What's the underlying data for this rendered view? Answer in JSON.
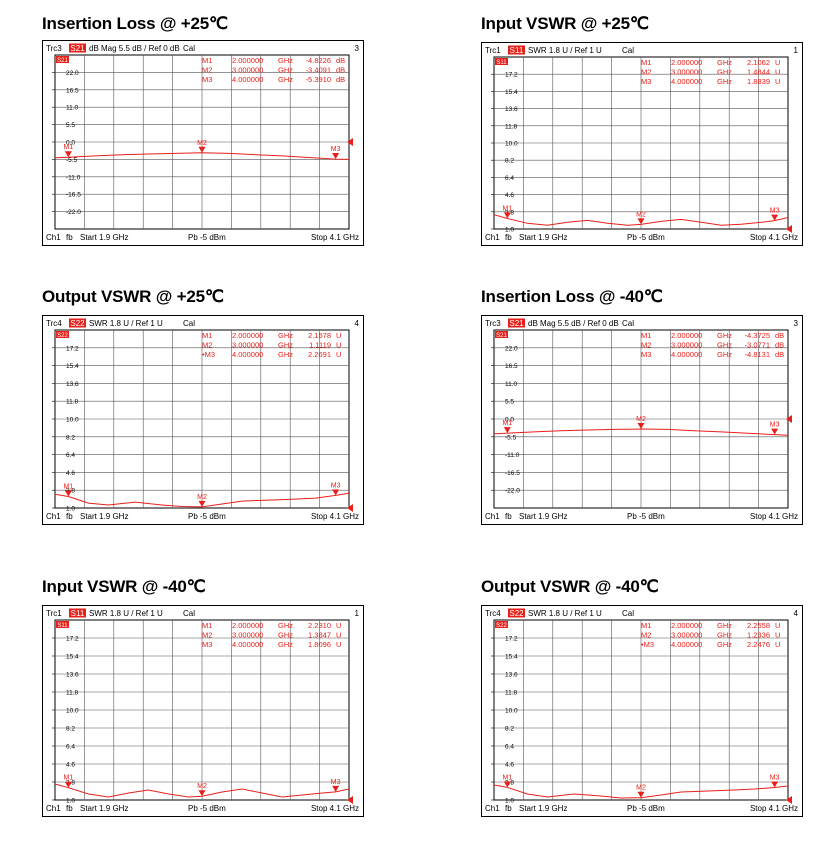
{
  "chart_data": [
    {
      "type": "line",
      "title": "Insertion Loss @ +25℃",
      "header": {
        "trace": "Trc3",
        "param": "S21",
        "fmt": "dB Mag",
        "scale": "5.5 dB /",
        "ref": "Ref 0 dB",
        "cal": "Cal",
        "num": "3"
      },
      "footer": {
        "ch": "Ch1",
        "fb": "fb",
        "start": "Start  1.9 GHz",
        "pb": "Pb  -5 dBm",
        "stop": "Stop  4.1 GHz"
      },
      "y_ticks": [
        "22.0",
        "16.5",
        "11.0",
        "5.5",
        "0.0",
        "-5.5",
        "-11.0",
        "-16.5",
        "-22.0"
      ],
      "ylim": [
        -27.5,
        27.5
      ],
      "xlim": [
        1.9,
        4.1
      ],
      "markers_table": [
        {
          "name": "M1",
          "freq": "2.000000",
          "unit": "GHz",
          "value": "-4.8226",
          "vunit": "dB"
        },
        {
          "name": "M2",
          "freq": "3.000000",
          "unit": "GHz",
          "value": "-3.4091",
          "vunit": "dB"
        },
        {
          "name": "M3",
          "freq": "4.000000",
          "unit": "GHz",
          "value": "-5.3910",
          "vunit": "dB"
        }
      ],
      "series": [
        {
          "x": [
            1.9,
            2.0,
            2.2,
            2.4,
            2.6,
            2.8,
            3.0,
            3.2,
            3.4,
            3.6,
            3.8,
            4.0,
            4.1
          ],
          "y": [
            -5.0,
            -4.8,
            -4.4,
            -4.0,
            -3.8,
            -3.6,
            -3.4,
            -3.6,
            -4.0,
            -4.4,
            -4.9,
            -5.4,
            -5.5
          ]
        }
      ],
      "marker_points": [
        {
          "label": "M1",
          "x": 2.0,
          "y": -4.82
        },
        {
          "label": "M2",
          "x": 3.0,
          "y": -3.41
        },
        {
          "label": "M3",
          "x": 4.0,
          "y": -5.39
        }
      ],
      "ref_value": 0.0,
      "color": "#e8201a"
    },
    {
      "type": "line",
      "title": "Input VSWR @ +25℃",
      "header": {
        "trace": "Trc1",
        "param": "S11",
        "fmt": "SWR",
        "scale": "1.8 U /",
        "ref": "Ref 1 U",
        "cal": "Cal",
        "num": "1"
      },
      "footer": {
        "ch": "Ch1",
        "fb": "fb",
        "start": "Start  1.9 GHz",
        "pb": "Pb  -5 dBm",
        "stop": "Stop  4.1 GHz"
      },
      "y_ticks": [
        "17.2",
        "15.4",
        "13.6",
        "11.8",
        "10.0",
        "8.2",
        "6.4",
        "4.6",
        "2.8",
        "1.0"
      ],
      "ylim": [
        1.0,
        19.0
      ],
      "xlim": [
        1.9,
        4.1
      ],
      "markers_table": [
        {
          "name": "M1",
          "freq": "2.000000",
          "unit": "GHz",
          "value": "2.1062",
          "vunit": "U"
        },
        {
          "name": "M2",
          "freq": "3.000000",
          "unit": "GHz",
          "value": "1.4844",
          "vunit": "U"
        },
        {
          "name": "M3",
          "freq": "4.000000",
          "unit": "GHz",
          "value": "1.8839",
          "vunit": "U"
        }
      ],
      "series": [
        {
          "x": [
            1.9,
            2.0,
            2.15,
            2.3,
            2.45,
            2.6,
            2.75,
            2.9,
            3.0,
            3.15,
            3.3,
            3.45,
            3.6,
            3.75,
            3.9,
            4.0,
            4.1
          ],
          "y": [
            2.5,
            2.1,
            1.6,
            1.4,
            1.7,
            1.9,
            1.6,
            1.4,
            1.48,
            1.8,
            2.0,
            1.7,
            1.4,
            1.5,
            1.7,
            1.88,
            2.2
          ]
        }
      ],
      "marker_points": [
        {
          "label": "M1",
          "x": 2.0,
          "y": 2.11
        },
        {
          "label": "M2",
          "x": 3.0,
          "y": 1.48
        },
        {
          "label": "M3",
          "x": 4.0,
          "y": 1.88
        }
      ],
      "ref_value": 1.0,
      "color": "#e8201a"
    },
    {
      "type": "line",
      "title": "Output VSWR @ +25℃",
      "header": {
        "trace": "Trc4",
        "param": "S22",
        "fmt": "SWR",
        "scale": "1.8 U /",
        "ref": "Ref 1 U",
        "cal": "Cal",
        "num": "4"
      },
      "footer": {
        "ch": "Ch1",
        "fb": "fb",
        "start": "Start  1.9 GHz",
        "pb": "Pb  -5 dBm",
        "stop": "Stop  4.1 GHz"
      },
      "y_ticks": [
        "17.2",
        "15.4",
        "13.6",
        "11.8",
        "10.0",
        "8.2",
        "6.4",
        "4.6",
        "2.8",
        "1.0"
      ],
      "ylim": [
        1.0,
        19.0
      ],
      "xlim": [
        1.9,
        4.1
      ],
      "markers_table": [
        {
          "name": "M1",
          "freq": "2.000000",
          "unit": "GHz",
          "value": "2.1578",
          "vunit": "U"
        },
        {
          "name": "M2",
          "freq": "3.000000",
          "unit": "GHz",
          "value": "1.1119",
          "vunit": "U"
        },
        {
          "name": "•M3",
          "freq": "4.000000",
          "unit": "GHz",
          "value": "2.2691",
          "vunit": "U"
        }
      ],
      "series": [
        {
          "x": [
            1.9,
            2.0,
            2.15,
            2.3,
            2.5,
            2.7,
            2.85,
            3.0,
            3.15,
            3.3,
            3.5,
            3.7,
            3.85,
            4.0,
            4.1
          ],
          "y": [
            2.4,
            2.16,
            1.5,
            1.3,
            1.6,
            1.3,
            1.15,
            1.11,
            1.4,
            1.7,
            1.8,
            1.9,
            2.0,
            2.27,
            2.5
          ]
        }
      ],
      "marker_points": [
        {
          "label": "M1",
          "x": 2.0,
          "y": 2.16
        },
        {
          "label": "M2",
          "x": 3.0,
          "y": 1.11
        },
        {
          "label": "M3",
          "x": 4.0,
          "y": 2.27
        }
      ],
      "ref_value": 1.0,
      "color": "#e8201a"
    },
    {
      "type": "line",
      "title": "Insertion Loss @ -40℃",
      "header": {
        "trace": "Trc3",
        "param": "S21",
        "fmt": "dB Mag",
        "scale": "5.5 dB /",
        "ref": "Ref 0 dB",
        "cal": "Cal",
        "num": "3"
      },
      "footer": {
        "ch": "Ch1",
        "fb": "fb",
        "start": "Start  1.9 GHz",
        "pb": "Pb  -5 dBm",
        "stop": "Stop  4.1 GHz"
      },
      "y_ticks": [
        "22.0",
        "16.5",
        "11.0",
        "5.5",
        "0.0",
        "-5.5",
        "-11.0",
        "-16.5",
        "-22.0"
      ],
      "ylim": [
        -27.5,
        27.5
      ],
      "xlim": [
        1.9,
        4.1
      ],
      "markers_table": [
        {
          "name": "M1",
          "freq": "2.000000",
          "unit": "GHz",
          "value": "-4.3725",
          "vunit": "dB"
        },
        {
          "name": "M2",
          "freq": "3.000000",
          "unit": "GHz",
          "value": "-3.0771",
          "vunit": "dB"
        },
        {
          "name": "M3",
          "freq": "4.000000",
          "unit": "GHz",
          "value": "-4.8131",
          "vunit": "dB"
        }
      ],
      "series": [
        {
          "x": [
            1.9,
            2.0,
            2.2,
            2.4,
            2.6,
            2.8,
            3.0,
            3.2,
            3.4,
            3.6,
            3.8,
            4.0,
            4.1
          ],
          "y": [
            -4.6,
            -4.37,
            -4.0,
            -3.6,
            -3.4,
            -3.2,
            -3.08,
            -3.2,
            -3.6,
            -4.0,
            -4.4,
            -4.81,
            -5.0
          ]
        }
      ],
      "marker_points": [
        {
          "label": "M1",
          "x": 2.0,
          "y": -4.37
        },
        {
          "label": "M2",
          "x": 3.0,
          "y": -3.08
        },
        {
          "label": "M3",
          "x": 4.0,
          "y": -4.81
        }
      ],
      "ref_value": 0.0,
      "color": "#e8201a"
    },
    {
      "type": "line",
      "title": "Input VSWR @ -40℃",
      "header": {
        "trace": "Trc1",
        "param": "S11",
        "fmt": "SWR",
        "scale": "1.8 U /",
        "ref": "Ref 1 U",
        "cal": "Cal",
        "num": "1"
      },
      "footer": {
        "ch": "Ch1",
        "fb": "fb",
        "start": "Start  1.9 GHz",
        "pb": "Pb  -5 dBm",
        "stop": "Stop  4.1 GHz"
      },
      "y_ticks": [
        "17.2",
        "15.4",
        "13.6",
        "11.8",
        "10.0",
        "8.2",
        "6.4",
        "4.6",
        "2.8",
        "1.0"
      ],
      "ylim": [
        1.0,
        19.0
      ],
      "xlim": [
        1.9,
        4.1
      ],
      "markers_table": [
        {
          "name": "M1",
          "freq": "2.000000",
          "unit": "GHz",
          "value": "2.2310",
          "vunit": "U"
        },
        {
          "name": "M2",
          "freq": "3.000000",
          "unit": "GHz",
          "value": "1.3847",
          "vunit": "U"
        },
        {
          "name": "M3",
          "freq": "4.000000",
          "unit": "GHz",
          "value": "1.8096",
          "vunit": "U"
        }
      ],
      "series": [
        {
          "x": [
            1.9,
            2.0,
            2.15,
            2.3,
            2.45,
            2.6,
            2.75,
            2.9,
            3.0,
            3.15,
            3.3,
            3.45,
            3.6,
            3.75,
            3.9,
            4.0,
            4.1
          ],
          "y": [
            2.6,
            2.23,
            1.6,
            1.3,
            1.7,
            2.0,
            1.6,
            1.3,
            1.38,
            1.8,
            2.1,
            1.7,
            1.3,
            1.5,
            1.7,
            1.81,
            2.1
          ]
        }
      ],
      "marker_points": [
        {
          "label": "M1",
          "x": 2.0,
          "y": 2.23
        },
        {
          "label": "M2",
          "x": 3.0,
          "y": 1.38
        },
        {
          "label": "M3",
          "x": 4.0,
          "y": 1.81
        }
      ],
      "ref_value": 1.0,
      "color": "#e8201a"
    },
    {
      "type": "line",
      "title": "Output VSWR @ -40℃",
      "header": {
        "trace": "Trc4",
        "param": "S22",
        "fmt": "SWR",
        "scale": "1.8 U /",
        "ref": "Ref 1 U",
        "cal": "Cal",
        "num": "4"
      },
      "footer": {
        "ch": "Ch1",
        "fb": "fb",
        "start": "Start  1.9 GHz",
        "pb": "Pb  -5 dBm",
        "stop": "Stop  4.1 GHz"
      },
      "y_ticks": [
        "17.2",
        "15.4",
        "13.6",
        "11.8",
        "10.0",
        "8.2",
        "6.4",
        "4.6",
        "2.8",
        "1.0"
      ],
      "ylim": [
        1.0,
        19.0
      ],
      "xlim": [
        1.9,
        4.1
      ],
      "markers_table": [
        {
          "name": "M1",
          "freq": "2.000000",
          "unit": "GHz",
          "value": "2.2558",
          "vunit": "U"
        },
        {
          "name": "M2",
          "freq": "3.000000",
          "unit": "GHz",
          "value": "1.2336",
          "vunit": "U"
        },
        {
          "name": "•M3",
          "freq": "4.000000",
          "unit": "GHz",
          "value": "2.2476",
          "vunit": "U"
        }
      ],
      "series": [
        {
          "x": [
            1.9,
            2.0,
            2.15,
            2.3,
            2.5,
            2.7,
            2.85,
            3.0,
            3.15,
            3.3,
            3.5,
            3.7,
            3.85,
            4.0,
            4.1
          ],
          "y": [
            2.5,
            2.26,
            1.6,
            1.3,
            1.6,
            1.4,
            1.2,
            1.23,
            1.5,
            1.8,
            1.9,
            2.0,
            2.1,
            2.25,
            2.4
          ]
        }
      ],
      "marker_points": [
        {
          "label": "M1",
          "x": 2.0,
          "y": 2.26
        },
        {
          "label": "M2",
          "x": 3.0,
          "y": 1.23
        },
        {
          "label": "M3",
          "x": 4.0,
          "y": 2.25
        }
      ],
      "ref_value": 1.0,
      "color": "#e8201a"
    }
  ]
}
